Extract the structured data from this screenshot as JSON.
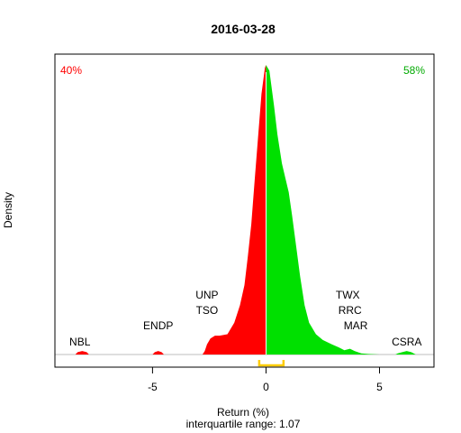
{
  "chart_data": {
    "type": "area",
    "title": "2016-03-28",
    "xlabel": "Return (%)",
    "subtitle": "interquartile range: 1.07",
    "ylabel": "Density",
    "xlim": [
      -9.3,
      7.4
    ],
    "ylim": [
      0,
      1.0
    ],
    "x_ticks": [
      -5,
      0,
      5
    ],
    "x_tick_labels": [
      "-5",
      "0",
      "5"
    ],
    "negative_pct": "40%",
    "positive_pct": "58%",
    "iqr_bracket": [
      -0.3,
      0.77
    ],
    "colors": {
      "negative": "#ff0000",
      "positive": "#00e000",
      "divider": "#ffffff",
      "bracket": "#ffcc00",
      "baseline": "#bebebe"
    },
    "density": [
      [
        -8.4,
        0
      ],
      [
        -8.3,
        0.008
      ],
      [
        -8.1,
        0.012
      ],
      [
        -7.9,
        0.008
      ],
      [
        -7.8,
        0
      ],
      [
        -5.0,
        0
      ],
      [
        -4.9,
        0.008
      ],
      [
        -4.75,
        0.012
      ],
      [
        -4.6,
        0.008
      ],
      [
        -4.5,
        0
      ],
      [
        -2.8,
        0
      ],
      [
        -2.7,
        0.012
      ],
      [
        -2.6,
        0.035
      ],
      [
        -2.45,
        0.055
      ],
      [
        -2.25,
        0.065
      ],
      [
        -2.05,
        0.065
      ],
      [
        -1.7,
        0.07
      ],
      [
        -1.4,
        0.11
      ],
      [
        -1.15,
        0.17
      ],
      [
        -0.95,
        0.24
      ],
      [
        -0.8,
        0.34
      ],
      [
        -0.65,
        0.45
      ],
      [
        -0.5,
        0.6
      ],
      [
        -0.35,
        0.75
      ],
      [
        -0.2,
        0.9
      ],
      [
        -0.05,
        0.99
      ],
      [
        0.0,
        1.0
      ],
      [
        0.15,
        0.98
      ],
      [
        0.35,
        0.86
      ],
      [
        0.5,
        0.76
      ],
      [
        0.7,
        0.66
      ],
      [
        0.85,
        0.61
      ],
      [
        1.0,
        0.56
      ],
      [
        1.15,
        0.48
      ],
      [
        1.35,
        0.36
      ],
      [
        1.5,
        0.27
      ],
      [
        1.7,
        0.17
      ],
      [
        1.9,
        0.11
      ],
      [
        2.2,
        0.07
      ],
      [
        2.5,
        0.05
      ],
      [
        2.9,
        0.035
      ],
      [
        3.2,
        0.025
      ],
      [
        3.45,
        0.015
      ],
      [
        3.7,
        0.02
      ],
      [
        3.9,
        0.012
      ],
      [
        4.2,
        0.004
      ],
      [
        4.5,
        0.002
      ],
      [
        5.0,
        0.0
      ],
      [
        5.7,
        0
      ],
      [
        5.8,
        0.004
      ],
      [
        6.0,
        0.008
      ],
      [
        6.2,
        0.012
      ],
      [
        6.4,
        0.008
      ],
      [
        6.6,
        0
      ]
    ],
    "annotations": [
      {
        "label": "NBL",
        "x": -8.2,
        "row": 0
      },
      {
        "label": "ENDP",
        "x": -4.75,
        "row": 1
      },
      {
        "label": "TSO",
        "x": -2.6,
        "row": 2
      },
      {
        "label": "UNP",
        "x": -2.6,
        "row": 3
      },
      {
        "label": "MAR",
        "x": 3.95,
        "row": 1
      },
      {
        "label": "RRC",
        "x": 3.7,
        "row": 2
      },
      {
        "label": "TWX",
        "x": 3.6,
        "row": 3
      },
      {
        "label": "CSRA",
        "x": 6.2,
        "row": 0
      }
    ]
  }
}
